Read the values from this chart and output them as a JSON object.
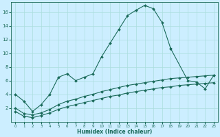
{
  "xlabel": "Humidex (Indice chaleur)",
  "bg_color": "#cceeff",
  "grid_color": "#aadddd",
  "line_color": "#1a6a5a",
  "xlim": [
    -0.5,
    23.5
  ],
  "ylim": [
    0,
    17.5
  ],
  "xticks": [
    0,
    1,
    2,
    3,
    4,
    5,
    6,
    7,
    8,
    9,
    10,
    11,
    12,
    13,
    14,
    15,
    16,
    17,
    18,
    19,
    20,
    21,
    22,
    23
  ],
  "yticks": [
    2,
    4,
    6,
    8,
    10,
    12,
    14,
    16
  ],
  "line1_x": [
    0,
    1,
    2,
    3,
    4,
    5,
    6,
    7,
    8,
    9,
    10,
    11,
    12,
    13,
    14,
    15,
    16,
    17,
    18
  ],
  "line1_y": [
    4.0,
    3.0,
    1.5,
    2.5,
    4.0,
    6.5,
    7.0,
    6.0,
    6.5,
    7.0,
    9.5,
    11.5,
    13.5,
    15.5,
    16.3,
    17.0,
    16.5,
    14.5,
    10.7
  ],
  "line2_x": [
    18,
    20,
    21,
    22,
    23
  ],
  "line2_y": [
    10.7,
    6.0,
    5.8,
    4.8,
    6.8
  ],
  "line3_x": [
    0,
    1,
    2,
    3,
    4,
    5,
    6,
    7,
    8,
    9,
    10,
    11,
    12,
    13,
    14,
    15,
    16,
    17,
    18,
    19,
    20,
    21,
    22,
    23
  ],
  "line3_y": [
    2.0,
    1.2,
    1.0,
    1.3,
    1.8,
    2.5,
    3.0,
    3.3,
    3.7,
    4.0,
    4.4,
    4.7,
    5.0,
    5.3,
    5.5,
    5.7,
    5.9,
    6.1,
    6.3,
    6.4,
    6.5,
    6.6,
    6.7,
    6.8
  ],
  "line4_x": [
    0,
    1,
    2,
    3,
    4,
    5,
    6,
    7,
    8,
    9,
    10,
    11,
    12,
    13,
    14,
    15,
    16,
    17,
    18,
    19,
    20,
    21,
    22,
    23
  ],
  "line4_y": [
    1.5,
    0.8,
    0.6,
    0.9,
    1.3,
    1.8,
    2.2,
    2.5,
    2.8,
    3.1,
    3.4,
    3.7,
    3.9,
    4.2,
    4.4,
    4.6,
    4.8,
    5.0,
    5.1,
    5.3,
    5.4,
    5.5,
    5.6,
    5.7
  ]
}
